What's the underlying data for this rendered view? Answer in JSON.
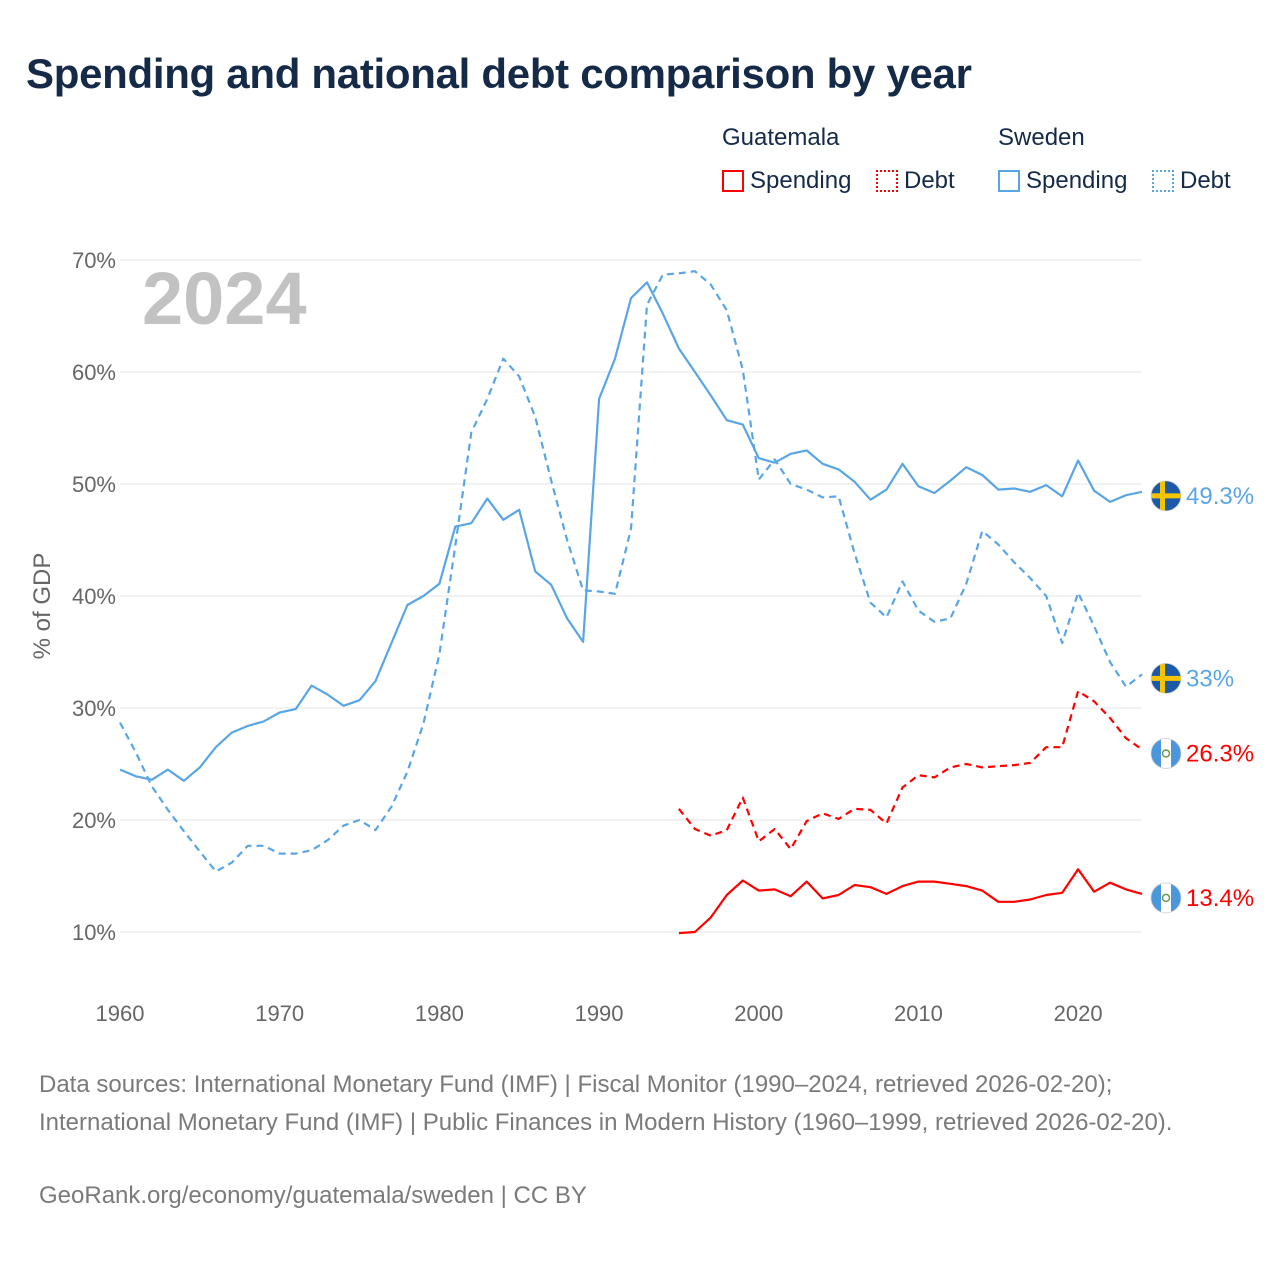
{
  "title": "Spending and national debt comparison by year",
  "legend": {
    "groups": [
      {
        "country": "Guatemala",
        "spending_label": "Spending",
        "debt_label": "Debt",
        "color": "#ff0000"
      },
      {
        "country": "Sweden",
        "spending_label": "Spending",
        "debt_label": "Debt",
        "color": "#5aa5e6"
      }
    ]
  },
  "footer": {
    "sources": "Data sources: International Monetary Fund (IMF) | Fiscal Monitor (1990–2024, retrieved 2026-02-20); International Monetary Fund (IMF) | Public Finances in Modern History (1960–1999, retrieved 2026-02-20).",
    "credit": "GeoRank.org/economy/guatemala/sweden | CC BY"
  },
  "chart_data": {
    "type": "line",
    "year_label": "2024",
    "ylabel": "% of GDP",
    "xlabel": "",
    "ylim": [
      5,
      72
    ],
    "xlim": [
      1960,
      2024
    ],
    "yticks": [
      10,
      20,
      30,
      40,
      50,
      60,
      70
    ],
    "ytick_labels": [
      "10%",
      "20%",
      "30%",
      "40%",
      "50%",
      "60%",
      "70%"
    ],
    "xticks": [
      1960,
      1970,
      1980,
      1990,
      2000,
      2010,
      2020
    ],
    "xtick_labels": [
      "1960",
      "1970",
      "1980",
      "1990",
      "2000",
      "2010",
      "2020"
    ],
    "series": [
      {
        "name": "Sweden Spending",
        "country": "Sweden",
        "measure": "Spending",
        "color": "#5aa5e6",
        "dash": "solid",
        "flag": "sweden",
        "end_label": "49.3%",
        "x": [
          1960,
          1961,
          1962,
          1963,
          1964,
          1965,
          1966,
          1967,
          1968,
          1969,
          1970,
          1971,
          1972,
          1973,
          1974,
          1975,
          1976,
          1977,
          1978,
          1979,
          1980,
          1981,
          1982,
          1983,
          1984,
          1985,
          1986,
          1987,
          1988,
          1989,
          1990,
          1991,
          1992,
          1993,
          1994,
          1995,
          1996,
          1997,
          1998,
          1999,
          2000,
          2001,
          2002,
          2003,
          2004,
          2005,
          2006,
          2007,
          2008,
          2009,
          2010,
          2011,
          2012,
          2013,
          2014,
          2015,
          2016,
          2017,
          2018,
          2019,
          2020,
          2021,
          2022,
          2023,
          2024
        ],
        "values": [
          24.5,
          23.9,
          23.6,
          24.5,
          23.5,
          24.7,
          26.5,
          27.8,
          28.4,
          28.8,
          29.6,
          29.9,
          32.0,
          31.2,
          30.2,
          30.7,
          32.4,
          35.8,
          39.2,
          40.0,
          41.1,
          46.2,
          46.5,
          48.7,
          46.8,
          47.7,
          42.2,
          41.0,
          38.0,
          35.9,
          57.6,
          61.2,
          66.6,
          68.0,
          65.2,
          62.1,
          60.0,
          57.9,
          55.7,
          55.3,
          52.3,
          51.9,
          52.7,
          53.0,
          51.8,
          51.3,
          50.2,
          48.6,
          49.5,
          51.8,
          49.8,
          49.2,
          50.3,
          51.5,
          50.8,
          49.5,
          49.6,
          49.3,
          49.9,
          48.9,
          52.1,
          49.4,
          48.4,
          49.0,
          49.3
        ]
      },
      {
        "name": "Sweden Debt",
        "country": "Sweden",
        "measure": "Debt",
        "color": "#5aa5e6",
        "dash": "dashed",
        "flag": "sweden",
        "end_label": "33%",
        "x": [
          1960,
          1961,
          1962,
          1963,
          1964,
          1965,
          1966,
          1967,
          1968,
          1969,
          1970,
          1971,
          1972,
          1973,
          1974,
          1975,
          1976,
          1977,
          1978,
          1979,
          1980,
          1981,
          1982,
          1983,
          1984,
          1985,
          1986,
          1987,
          1988,
          1989,
          1990,
          1991,
          1992,
          1993,
          1994,
          1995,
          1996,
          1997,
          1998,
          1999,
          2000,
          2001,
          2002,
          2003,
          2004,
          2005,
          2006,
          2007,
          2008,
          2009,
          2010,
          2011,
          2012,
          2013,
          2014,
          2015,
          2016,
          2017,
          2018,
          2019,
          2020,
          2021,
          2022,
          2023,
          2024
        ],
        "values": [
          28.7,
          26.0,
          23.0,
          20.9,
          19.0,
          17.2,
          15.4,
          16.2,
          17.7,
          17.7,
          17.0,
          17.0,
          17.3,
          18.2,
          19.5,
          20.0,
          19.1,
          21.2,
          24.3,
          28.6,
          34.8,
          44.5,
          54.6,
          57.6,
          61.2,
          59.6,
          56.0,
          50.3,
          45.0,
          40.5,
          40.4,
          40.2,
          46.0,
          66.0,
          68.7,
          68.8,
          69.0,
          67.8,
          65.5,
          60.2,
          50.4,
          52.2,
          50.0,
          49.5,
          48.8,
          48.9,
          43.8,
          39.4,
          38.1,
          41.3,
          38.7,
          37.7,
          38.0,
          41.1,
          45.8,
          44.6,
          43.0,
          41.6,
          40.0,
          35.8,
          40.3,
          37.3,
          34.1,
          31.9,
          33.0
        ]
      },
      {
        "name": "Guatemala Debt",
        "country": "Guatemala",
        "measure": "Debt",
        "color": "#ff0000",
        "dash": "dashed",
        "flag": "guatemala",
        "end_label": "26.3%",
        "x": [
          1995,
          1996,
          1997,
          1998,
          1999,
          2000,
          2001,
          2002,
          2003,
          2004,
          2005,
          2006,
          2007,
          2008,
          2009,
          2010,
          2011,
          2012,
          2013,
          2014,
          2015,
          2016,
          2017,
          2018,
          2019,
          2020,
          2021,
          2022,
          2023,
          2024
        ],
        "values": [
          21.0,
          19.2,
          18.6,
          19.1,
          22.0,
          18.1,
          19.2,
          17.4,
          19.9,
          20.6,
          20.1,
          21.0,
          20.9,
          19.7,
          22.9,
          24.0,
          23.8,
          24.7,
          25.0,
          24.7,
          24.8,
          24.9,
          25.1,
          26.5,
          26.5,
          31.5,
          30.6,
          29.1,
          27.3,
          26.3
        ]
      },
      {
        "name": "Guatemala Spending",
        "country": "Guatemala",
        "measure": "Spending",
        "color": "#ff0000",
        "dash": "solid",
        "flag": "guatemala",
        "end_label": "13.4%",
        "x": [
          1995,
          1996,
          1997,
          1998,
          1999,
          2000,
          2001,
          2002,
          2003,
          2004,
          2005,
          2006,
          2007,
          2008,
          2009,
          2010,
          2011,
          2012,
          2013,
          2014,
          2015,
          2016,
          2017,
          2018,
          2019,
          2020,
          2021,
          2022,
          2023,
          2024
        ],
        "values": [
          9.9,
          10.0,
          11.3,
          13.3,
          14.6,
          13.7,
          13.8,
          13.2,
          14.5,
          13.0,
          13.3,
          14.2,
          14.0,
          13.4,
          14.1,
          14.5,
          14.5,
          14.3,
          14.1,
          13.7,
          12.7,
          12.7,
          12.9,
          13.3,
          13.5,
          15.6,
          13.6,
          14.4,
          13.8,
          13.4
        ]
      }
    ]
  }
}
